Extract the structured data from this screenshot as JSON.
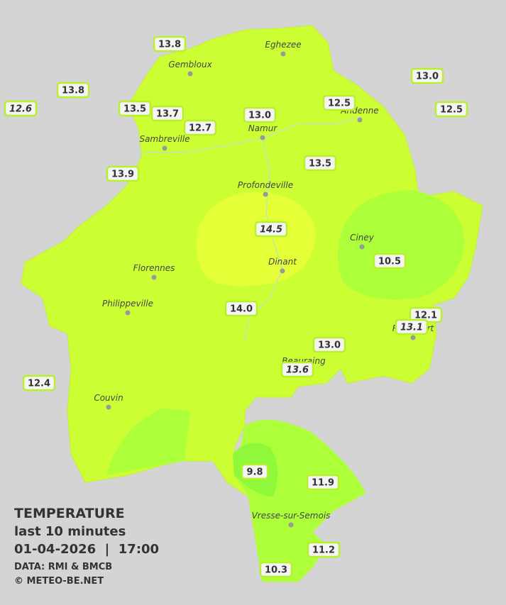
{
  "title": "TEMPERATURE",
  "subtitle": "last 10 minutes",
  "datetime": "01-04-2026  |  17:00",
  "source": "DATA: RMI & BMCB",
  "credit": "© METEO-BE.NET",
  "cities": [
    "Eghezee",
    "Gembloux",
    "Andenne",
    "Namur",
    "Sambreville",
    "Profondeville",
    "Ciney",
    "Florennes",
    "Dinant",
    "Philippeville",
    "Rochefort",
    "Beauraing",
    "Couvin",
    "Vresse-sur-Semois"
  ],
  "stations": [
    {
      "label": "13.8",
      "italic": false
    },
    {
      "label": "13.8",
      "italic": false
    },
    {
      "label": "12.6",
      "italic": true
    },
    {
      "label": "13.5",
      "italic": false
    },
    {
      "label": "13.7",
      "italic": false
    },
    {
      "label": "12.7",
      "italic": false
    },
    {
      "label": "13.0",
      "italic": false
    },
    {
      "label": "12.5",
      "italic": false
    },
    {
      "label": "13.0",
      "italic": false
    },
    {
      "label": "12.5",
      "italic": false
    },
    {
      "label": "13.9",
      "italic": false
    },
    {
      "label": "13.5",
      "italic": false
    },
    {
      "label": "14.5",
      "italic": true
    },
    {
      "label": "10.5",
      "italic": false
    },
    {
      "label": "14.0",
      "italic": false
    },
    {
      "label": "12.1",
      "italic": false
    },
    {
      "label": "13.1",
      "italic": true
    },
    {
      "label": "13.0",
      "italic": false
    },
    {
      "label": "13.6",
      "italic": true
    },
    {
      "label": "12.4",
      "italic": false
    },
    {
      "label": "9.8",
      "italic": false
    },
    {
      "label": "11.9",
      "italic": false
    },
    {
      "label": "11.2",
      "italic": false
    },
    {
      "label": "10.3",
      "italic": false
    }
  ]
}
